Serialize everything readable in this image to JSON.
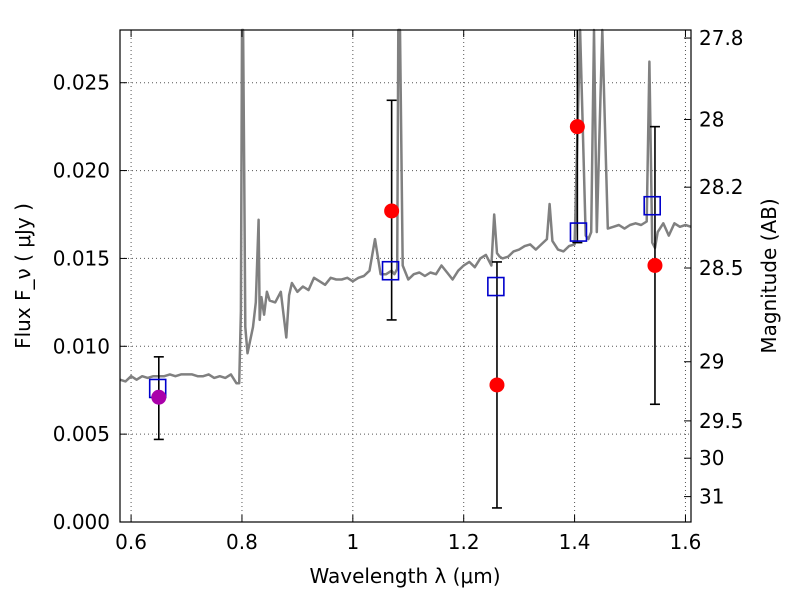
{
  "chart_data": {
    "type": "scatter",
    "title": "",
    "xlabel": "Wavelength  λ (μm)",
    "ylabel": "Flux  F_ν  ( μJy )",
    "ylabel_right": "Magnitude (AB)",
    "xlim": [
      0.58,
      1.61
    ],
    "ylim": [
      0.0,
      0.028
    ],
    "grid": true,
    "x_ticks": [
      0.6,
      0.8,
      1.0,
      1.2,
      1.4,
      1.6
    ],
    "x_tick_labels": [
      "0.6",
      "0.8",
      "1",
      "1.2",
      "1.4",
      "1.6"
    ],
    "y_ticks": [
      0.0,
      0.005,
      0.01,
      0.015,
      0.02,
      0.025
    ],
    "y_tick_labels": [
      "0.000",
      "0.005",
      "0.010",
      "0.015",
      "0.020",
      "0.025"
    ],
    "right_ticks": [
      {
        "mag": 27.8,
        "label": "27.8"
      },
      {
        "mag": 28.0,
        "label": "28"
      },
      {
        "mag": 28.2,
        "label": "28.2"
      },
      {
        "mag": 28.5,
        "label": "28.5"
      },
      {
        "mag": 29.0,
        "label": "29"
      },
      {
        "mag": 29.5,
        "label": "29.5"
      },
      {
        "mag": 30.0,
        "label": "30"
      },
      {
        "mag": 31.0,
        "label": "31"
      }
    ],
    "colors": {
      "model": "#808080",
      "observed": "#ff0000",
      "observed_first": "#aa00aa",
      "synthetic": "#0000cc",
      "errorbar": "#000000",
      "grid": "#555555"
    },
    "series": [
      {
        "role": "model",
        "x": [
          0.58,
          0.59,
          0.6,
          0.61,
          0.62,
          0.63,
          0.64,
          0.65,
          0.66,
          0.67,
          0.68,
          0.69,
          0.7,
          0.71,
          0.72,
          0.73,
          0.74,
          0.75,
          0.76,
          0.77,
          0.78,
          0.79,
          0.795,
          0.798,
          0.8,
          0.802,
          0.804,
          0.806,
          0.81,
          0.82,
          0.825,
          0.83,
          0.832,
          0.835,
          0.84,
          0.845,
          0.85,
          0.86,
          0.87,
          0.88,
          0.885,
          0.89,
          0.9,
          0.91,
          0.92,
          0.93,
          0.94,
          0.95,
          0.96,
          0.97,
          0.98,
          0.99,
          1.0,
          1.01,
          1.02,
          1.03,
          1.04,
          1.05,
          1.06,
          1.07,
          1.075,
          1.08,
          1.082,
          1.085,
          1.09,
          1.1,
          1.11,
          1.12,
          1.13,
          1.14,
          1.15,
          1.16,
          1.17,
          1.18,
          1.19,
          1.2,
          1.21,
          1.22,
          1.23,
          1.24,
          1.25,
          1.255,
          1.26,
          1.265,
          1.27,
          1.28,
          1.29,
          1.3,
          1.31,
          1.32,
          1.33,
          1.34,
          1.35,
          1.355,
          1.36,
          1.37,
          1.38,
          1.39,
          1.4,
          1.41,
          1.42,
          1.425,
          1.43,
          1.435,
          1.44,
          1.45,
          1.46,
          1.47,
          1.48,
          1.49,
          1.5,
          1.51,
          1.52,
          1.53,
          1.535,
          1.54,
          1.545,
          1.55,
          1.56,
          1.57,
          1.58,
          1.59,
          1.6,
          1.61
        ],
        "y": [
          0.0081,
          0.008,
          0.0083,
          0.0081,
          0.0083,
          0.0082,
          0.0083,
          0.0083,
          0.0083,
          0.0084,
          0.0083,
          0.0084,
          0.0084,
          0.0084,
          0.0083,
          0.0083,
          0.0084,
          0.0082,
          0.0083,
          0.0082,
          0.0084,
          0.0079,
          0.0079,
          0.012,
          0.028,
          0.028,
          0.02,
          0.0111,
          0.0096,
          0.0111,
          0.0125,
          0.0172,
          0.0115,
          0.0128,
          0.0118,
          0.0131,
          0.0126,
          0.0125,
          0.0131,
          0.0105,
          0.0129,
          0.0136,
          0.0131,
          0.0134,
          0.0132,
          0.0139,
          0.0137,
          0.0135,
          0.0139,
          0.0138,
          0.0138,
          0.0139,
          0.0137,
          0.0139,
          0.014,
          0.0143,
          0.0161,
          0.0141,
          0.0141,
          0.0143,
          0.0141,
          0.0144,
          0.028,
          0.028,
          0.0146,
          0.0138,
          0.0141,
          0.0142,
          0.014,
          0.0142,
          0.0141,
          0.0146,
          0.0142,
          0.0138,
          0.0143,
          0.0146,
          0.0148,
          0.0145,
          0.015,
          0.0152,
          0.0146,
          0.0175,
          0.0153,
          0.0151,
          0.015,
          0.0151,
          0.0154,
          0.0155,
          0.0157,
          0.0158,
          0.0155,
          0.0158,
          0.0161,
          0.0181,
          0.016,
          0.0155,
          0.0154,
          0.0157,
          0.0158,
          0.028,
          0.0163,
          0.0161,
          0.0165,
          0.028,
          0.0165,
          0.028,
          0.0167,
          0.0168,
          0.0169,
          0.0167,
          0.0169,
          0.017,
          0.0169,
          0.0171,
          0.0262,
          0.0159,
          0.0156,
          0.0165,
          0.017,
          0.0163,
          0.017,
          0.0168,
          0.0169,
          0.0168
        ]
      },
      {
        "role": "observed",
        "x": [
          0.65,
          1.07,
          1.26,
          1.405,
          1.545
        ],
        "y": [
          0.0071,
          0.0177,
          0.0078,
          0.0225,
          0.0146
        ],
        "yerr_low": [
          0.0047,
          0.0115,
          0.0008,
          0.0159,
          0.0067
        ],
        "yerr_high": [
          0.0094,
          0.024,
          0.0148,
          0.028,
          0.0225
        ]
      },
      {
        "role": "synthetic",
        "x": [
          0.648,
          1.068,
          1.258,
          1.407,
          1.54
        ],
        "y": [
          0.0076,
          0.0143,
          0.0134,
          0.0165,
          0.018
        ]
      }
    ]
  }
}
